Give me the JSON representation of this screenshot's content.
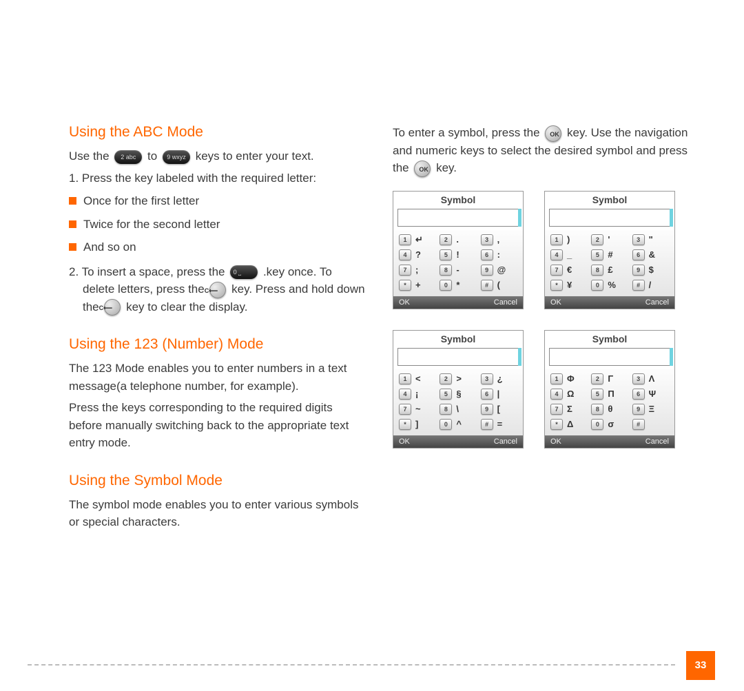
{
  "accent_color": "#ff6600",
  "headings": {
    "abc": "Using the ABC Mode",
    "num": "Using the 123 (Number) Mode",
    "sym": "Using the Symbol Mode"
  },
  "abc": {
    "line1_pre": "Use the ",
    "key2": "2 abc",
    "to": " to ",
    "key9": "9 wxyz",
    "line1_post": " keys to enter your text.",
    "step1": "1. Press the key labeled with the required letter:",
    "bullets": [
      "Once for the first letter",
      "Twice for the second letter",
      "And so on"
    ],
    "step2_a": "2. To insert a space, press the ",
    "key0": "0 ⎵",
    "step2_b": " .key once. To delete letters, press the ",
    "keyC1": "C⟵",
    "step2_c": " key. Press and hold down the ",
    "keyC2": "C⟵",
    "step2_d": " key to clear the display."
  },
  "num": {
    "p1": "The 123 Mode enables you to enter numbers in a text message(a telephone number, for example).",
    "p2": "Press the keys corresponding to the required digits before manually switching back to the appropriate text entry mode."
  },
  "sym": {
    "p1": "The symbol mode enables you to enter various symbols or special characters.",
    "p2_a": "To enter a symbol, press the ",
    "keyOK1": "OK",
    "p2_b": " key. Use the navigation and numeric keys to select the desired symbol and press the ",
    "keyOK2": "OK",
    "p2_c": " key."
  },
  "screen_common": {
    "title": "Symbol",
    "ok": "OK",
    "cancel": "Cancel",
    "key_labels": [
      "1",
      "2",
      "3",
      "4",
      "5",
      "6",
      "7",
      "8",
      "9",
      "*",
      "0",
      "#"
    ]
  },
  "screens": {
    "s1": [
      "↵",
      ".",
      ",",
      "?",
      "!",
      ":",
      ";",
      "-",
      "@",
      "+",
      "*",
      "("
    ],
    "s2": [
      ")",
      "'",
      "\"",
      "_",
      "#",
      "&",
      "€",
      "£",
      "$",
      "¥",
      "%",
      "/"
    ],
    "s3": [
      "<",
      ">",
      "¿",
      "¡",
      "§",
      "|",
      "~",
      "\\",
      "[",
      "]",
      "^",
      "="
    ],
    "s4": [
      "Φ",
      "Γ",
      "Λ",
      "Ω",
      "Π",
      "Ψ",
      "Σ",
      "θ",
      "Ξ",
      "Δ",
      "σ",
      ""
    ]
  },
  "page_number": "33"
}
